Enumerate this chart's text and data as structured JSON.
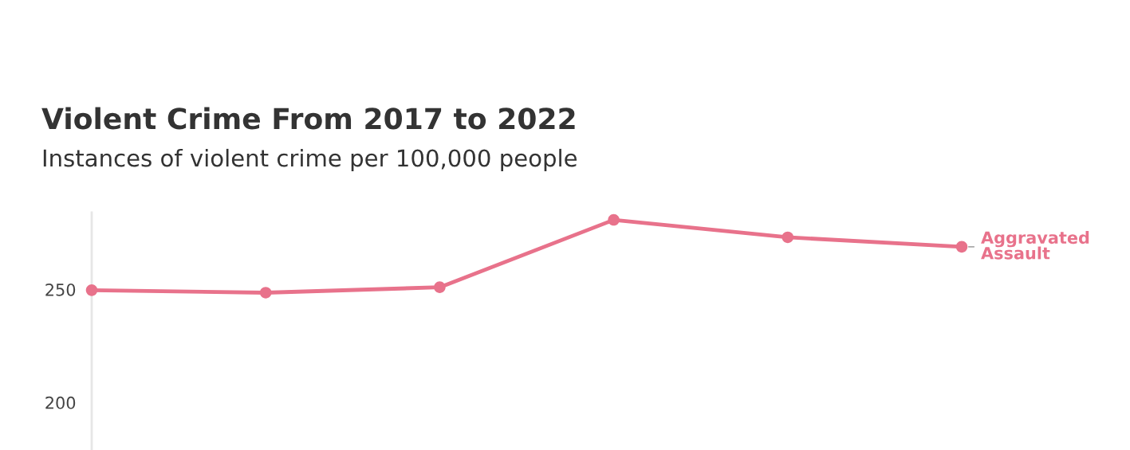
{
  "chart_data": {
    "type": "line",
    "title": "Violent Crime From 2017 to 2022",
    "subtitle": "Instances of violent crime per 100,000 people",
    "categories": [
      null,
      null,
      null,
      null,
      null,
      null
    ],
    "series": [
      {
        "name": "Aggravated Assault",
        "color": "#e8728b",
        "values": [
          249.7,
          248.6,
          251.0,
          280.8,
          273.1,
          268.9
        ]
      }
    ],
    "ylim": [
      179,
      284
    ],
    "yticks": [
      200,
      250
    ],
    "grid": false,
    "legend": false,
    "marker": "circle",
    "line_style": "solid"
  }
}
